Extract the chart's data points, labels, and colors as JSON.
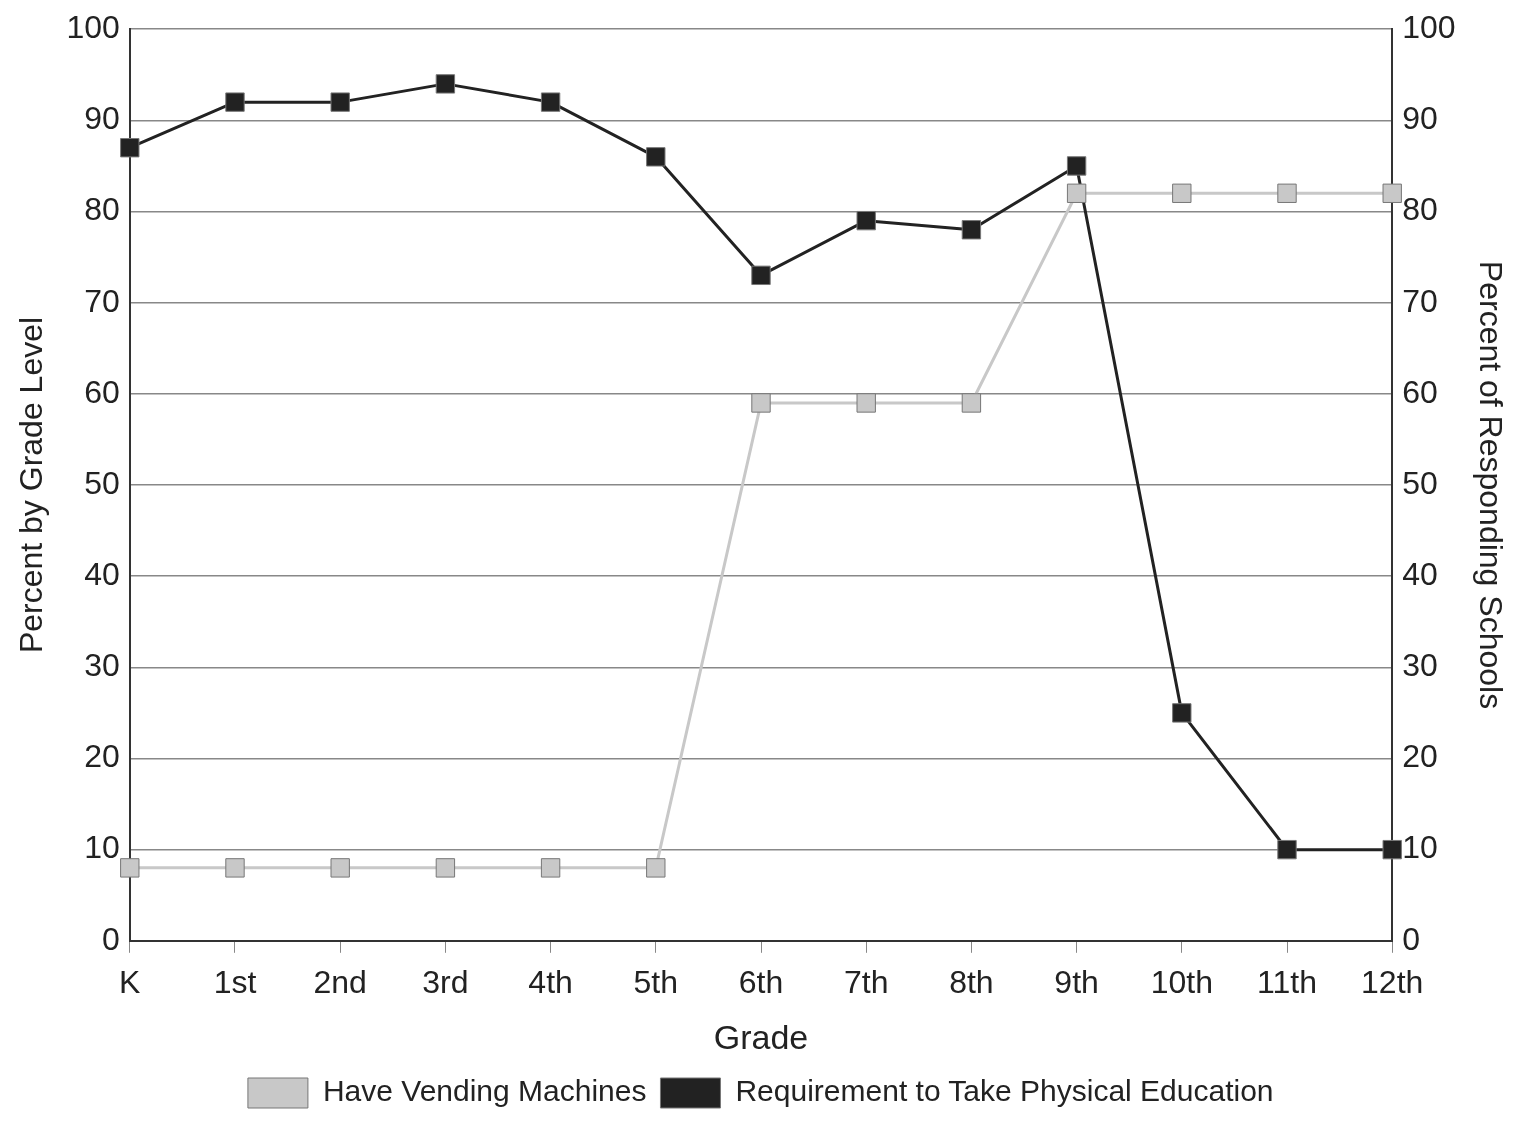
{
  "chart_data": {
    "type": "line",
    "xlabel": "Grade",
    "ylabel": "Percent by Grade Level",
    "y2label": "Percent of Responding Schools",
    "categories": [
      "K",
      "1st",
      "2nd",
      "3rd",
      "4th",
      "5th",
      "6th",
      "7th",
      "8th",
      "9th",
      "10th",
      "11th",
      "12th"
    ],
    "series": [
      {
        "name": "Have Vending Machines",
        "color": "#c8c8c8",
        "values": [
          8,
          8,
          8,
          8,
          8,
          8,
          59,
          59,
          59,
          82,
          82,
          82,
          82
        ]
      },
      {
        "name": "Requirement to Take Physical Education",
        "color": "#222222",
        "values": [
          87,
          92,
          92,
          94,
          92,
          86,
          73,
          79,
          78,
          85,
          25,
          10,
          10
        ]
      }
    ],
    "ylim": [
      0,
      100
    ],
    "yticks": [
      0,
      10,
      20,
      30,
      40,
      50,
      60,
      70,
      80,
      90,
      100
    ],
    "y2lim": [
      0,
      100
    ],
    "y2ticks": [
      0,
      10,
      20,
      30,
      40,
      50,
      60,
      70,
      80,
      90,
      100
    ],
    "grid": "y",
    "legend": "bottom",
    "marker": "square",
    "line_style": "solid"
  }
}
